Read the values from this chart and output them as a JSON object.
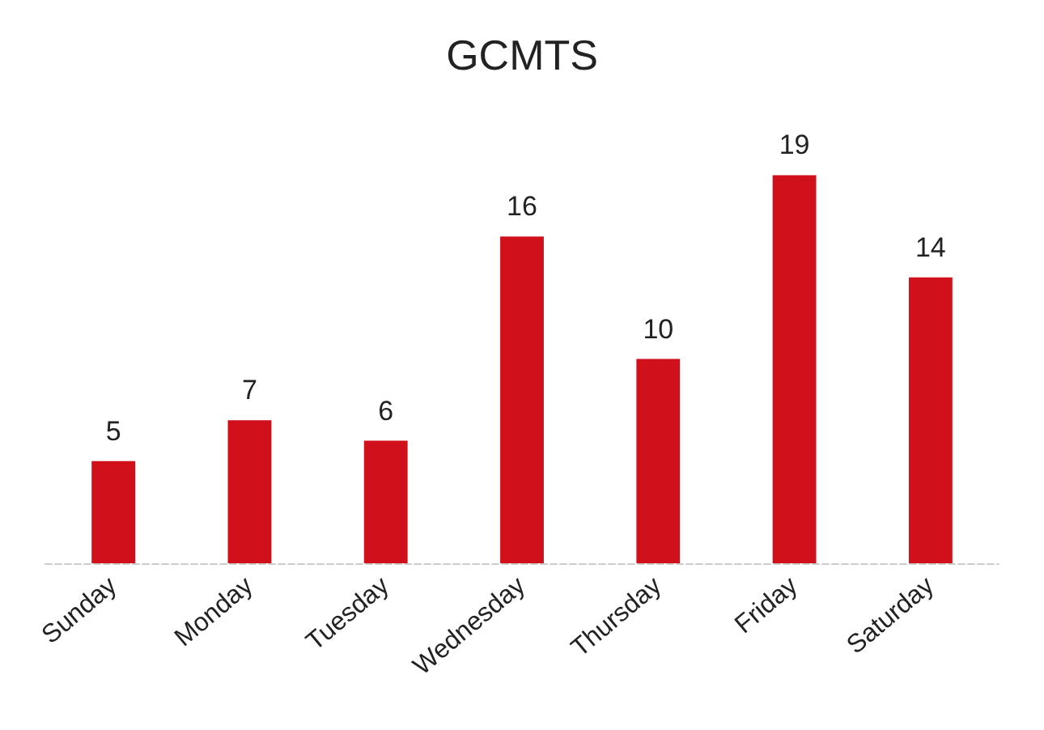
{
  "chart_data": {
    "type": "bar",
    "title": "GCMTS",
    "categories": [
      "Sunday",
      "Monday",
      "Tuesday",
      "Wednesday",
      "Thursday",
      "Friday",
      "Saturday"
    ],
    "values": [
      5,
      7,
      6,
      16,
      10,
      19,
      14
    ],
    "color": "#d0101b",
    "data_labels": true
  }
}
